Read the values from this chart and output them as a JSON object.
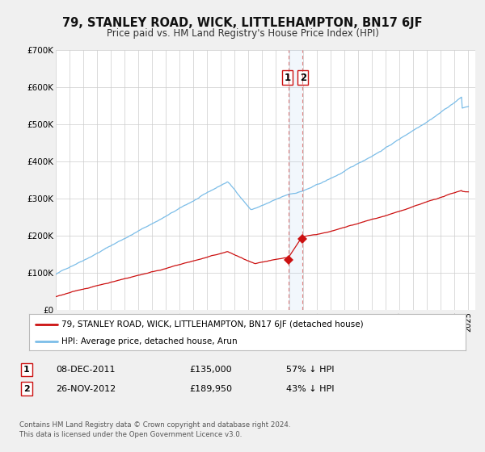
{
  "title": "79, STANLEY ROAD, WICK, LITTLEHAMPTON, BN17 6JF",
  "subtitle": "Price paid vs. HM Land Registry's House Price Index (HPI)",
  "bg_color": "#f0f0f0",
  "plot_bg_color": "#ffffff",
  "hpi_color": "#7bbde8",
  "price_color": "#cc1111",
  "grid_color": "#cccccc",
  "ylim": [
    0,
    700000
  ],
  "yticks": [
    0,
    100000,
    200000,
    300000,
    400000,
    500000,
    600000,
    700000
  ],
  "ytick_labels": [
    "£0",
    "£100K",
    "£200K",
    "£300K",
    "£400K",
    "£500K",
    "£600K",
    "£700K"
  ],
  "sale1_date": 2011.92,
  "sale1_price": 135000,
  "sale1_label": "08-DEC-2011",
  "sale1_price_str": "£135,000",
  "sale1_pct": "57% ↓ HPI",
  "sale2_date": 2012.9,
  "sale2_price": 189950,
  "sale2_label": "26-NOV-2012",
  "sale2_price_str": "£189,950",
  "sale2_pct": "43% ↓ HPI",
  "legend_label1": "79, STANLEY ROAD, WICK, LITTLEHAMPTON, BN17 6JF (detached house)",
  "legend_label2": "HPI: Average price, detached house, Arun",
  "footer_line1": "Contains HM Land Registry data © Crown copyright and database right 2024.",
  "footer_line2": "This data is licensed under the Open Government Licence v3.0."
}
